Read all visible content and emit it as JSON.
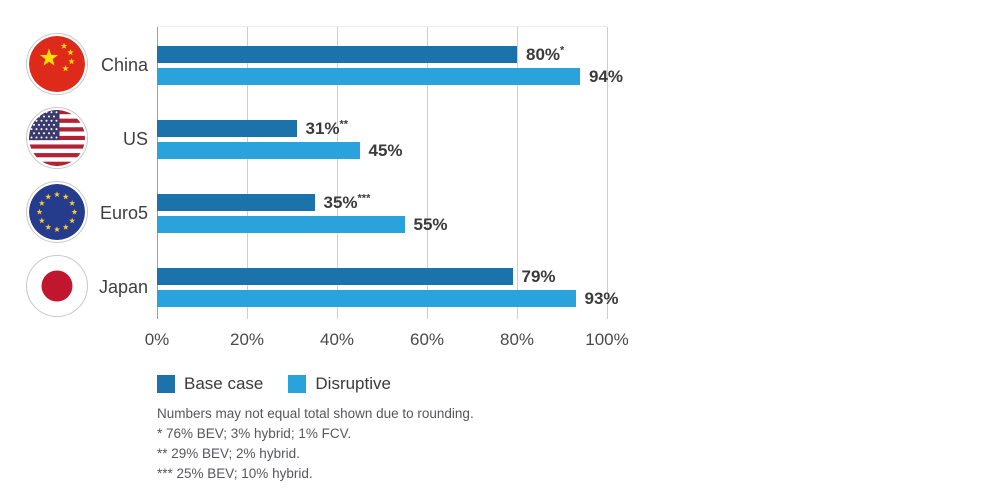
{
  "chart_data": {
    "type": "bar",
    "orientation": "horizontal",
    "title": "",
    "categories": [
      "China",
      "US",
      "Euro5",
      "Japan"
    ],
    "flags": [
      "china",
      "us",
      "eu",
      "japan"
    ],
    "series": [
      {
        "name": "Base case",
        "color": "#1c72ab",
        "values": [
          80,
          31,
          35,
          79
        ],
        "labels": [
          "80%",
          "31%",
          "35%",
          "79%"
        ],
        "label_notes": [
          "*",
          "**",
          "***",
          ""
        ]
      },
      {
        "name": "Disruptive",
        "color": "#2aa3dc",
        "values": [
          94,
          45,
          55,
          93
        ],
        "labels": [
          "94%",
          "45%",
          "55%",
          "93%"
        ],
        "label_notes": [
          "",
          "",
          "",
          ""
        ]
      }
    ],
    "x_axis": {
      "min": 0,
      "max": 100,
      "tick_labels": [
        "0%",
        "20%",
        "40%",
        "60%",
        "80%",
        "100%"
      ]
    },
    "grid": "vertical",
    "legend_position": "bottom"
  },
  "footnotes": [
    "Numbers may not equal total shown due to rounding.",
    "* 76% BEV; 3% hybrid; 1% FCV.",
    "** 29% BEV; 2% hybrid.",
    "*** 25% BEV; 10% hybrid."
  ],
  "flag_colors": {
    "china_red": "#de2a1a",
    "china_yellow": "#fede00",
    "us_red": "#b22234",
    "us_blue": "#3c3b6e",
    "eu_blue": "#253c8d",
    "eu_yellow": "#fcc930",
    "japan_red": "#c0172f"
  }
}
